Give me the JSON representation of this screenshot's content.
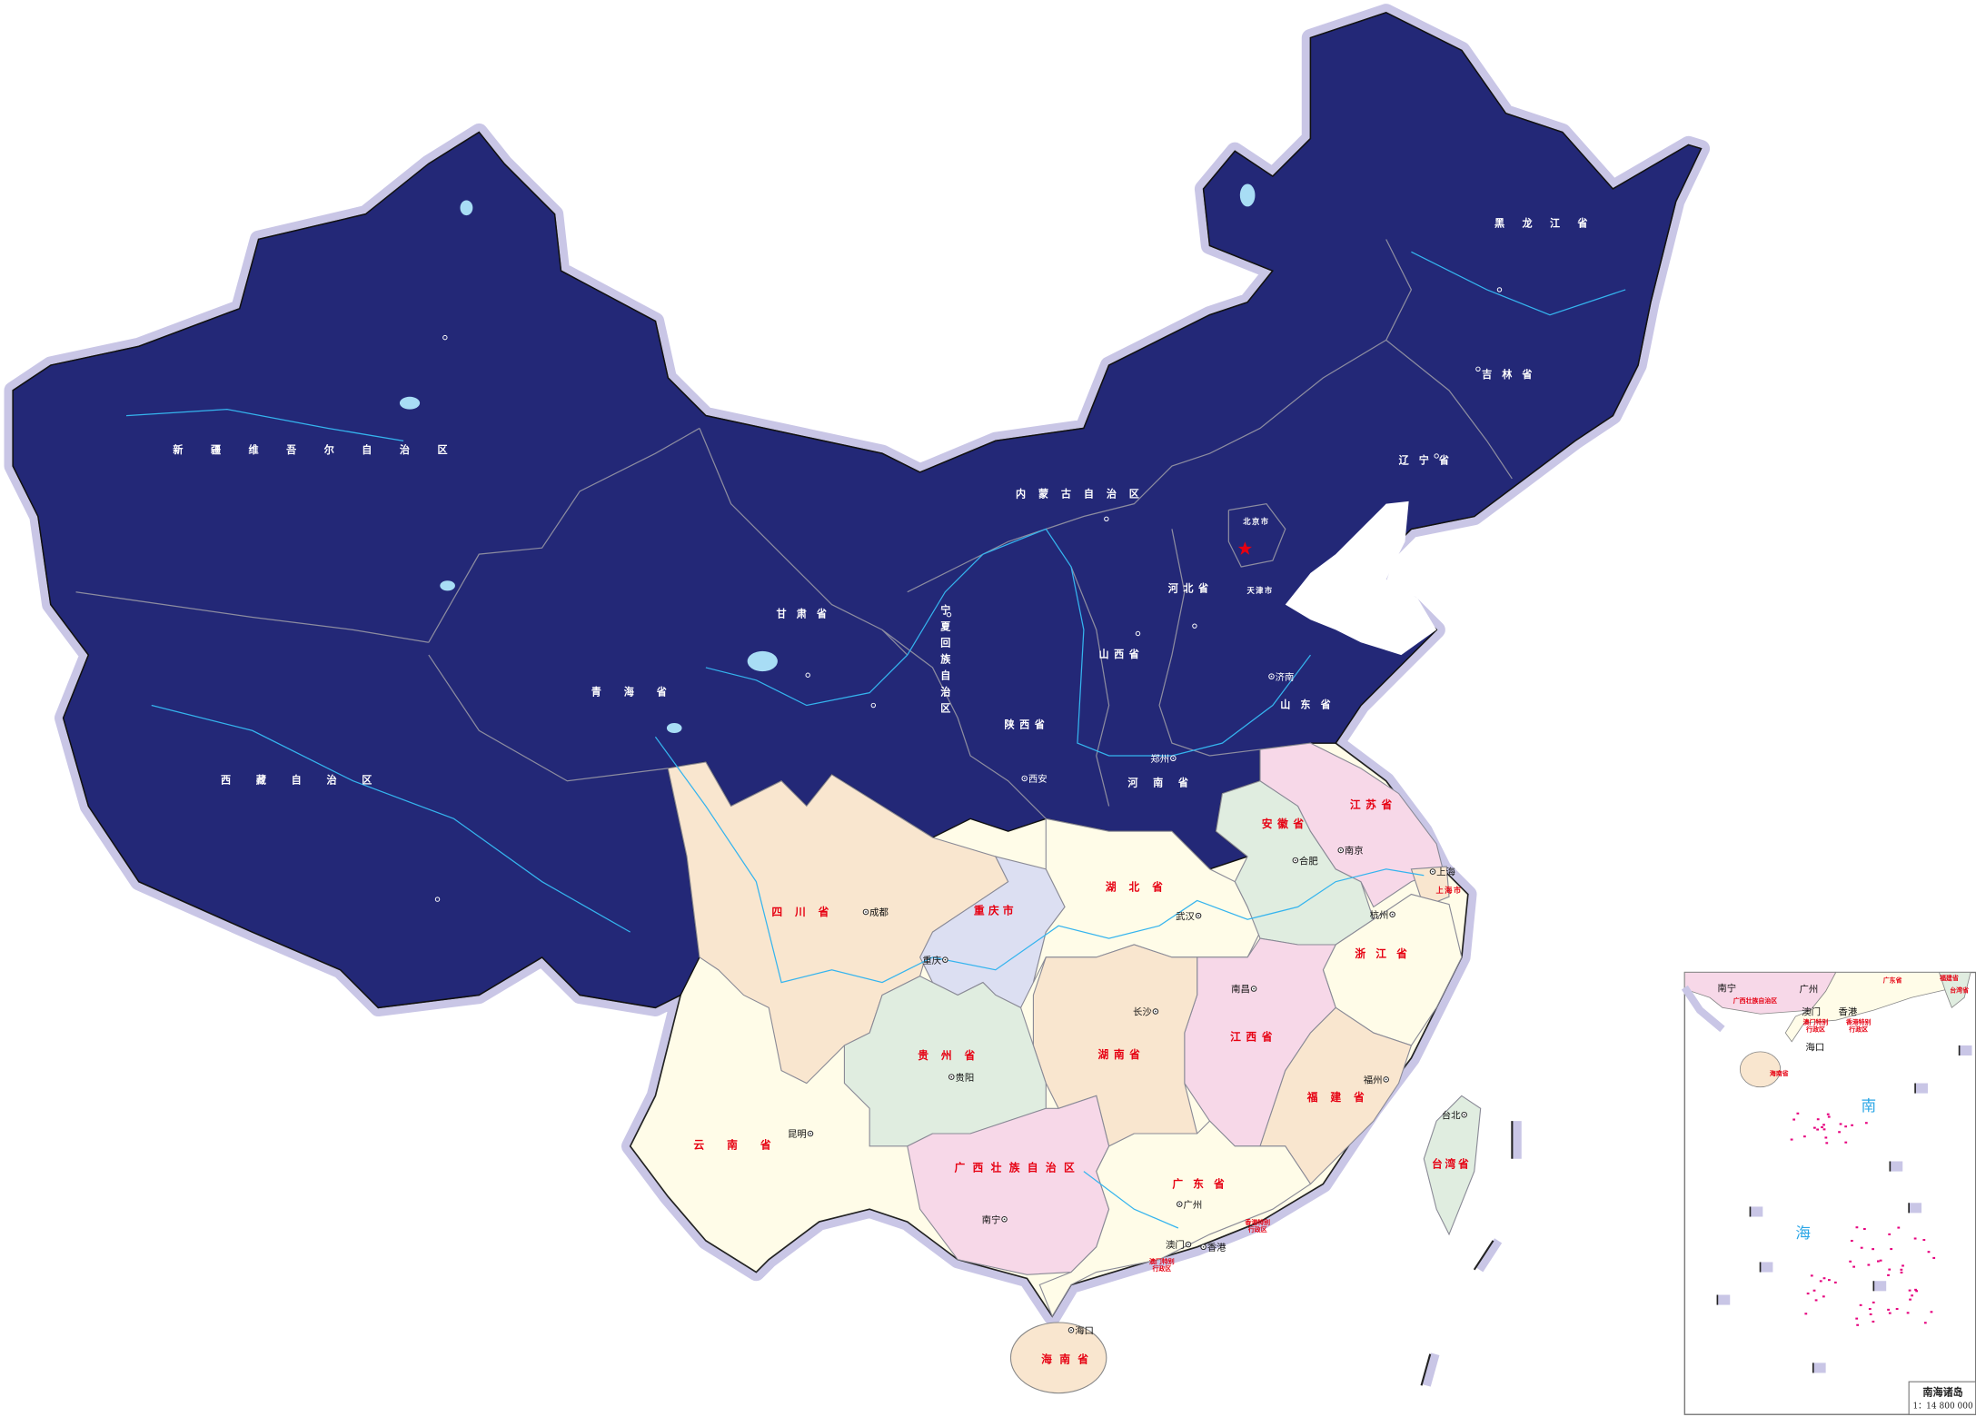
{
  "colors": {
    "north_region": "#232877",
    "halo": "#c9c6e6",
    "sichuan": "#f9e6cf",
    "chongqing": "#dcdff2",
    "cream": "#fffce8",
    "green": "#e0ede0",
    "pink": "#f7d8e8",
    "peach": "#f9e6cf",
    "river": "#35b4ee",
    "province_label_light": "#e60012",
    "island_dots": "#e6007e",
    "capital_star": "#e60012"
  },
  "provinces_dark": [
    {
      "name": "新疆维吾尔自治区"
    },
    {
      "name": "西藏自治区"
    },
    {
      "name": "青海省"
    },
    {
      "name": "甘肃省"
    },
    {
      "name": "内蒙古自治区"
    },
    {
      "name": "黑龙江省"
    },
    {
      "name": "吉林省"
    },
    {
      "name": "辽宁省"
    },
    {
      "name": "北京市"
    },
    {
      "name": "天津市"
    },
    {
      "name": "河北省"
    },
    {
      "name": "山西省"
    },
    {
      "name": "宁夏回族自治区"
    },
    {
      "name": "陕西省"
    },
    {
      "name": "山东省"
    },
    {
      "name": "河南省"
    }
  ],
  "provinces_light": [
    {
      "name": "四川省"
    },
    {
      "name": "重庆市"
    },
    {
      "name": "湖北省"
    },
    {
      "name": "安徽省"
    },
    {
      "name": "江苏省"
    },
    {
      "name": "上海市"
    },
    {
      "name": "浙江省"
    },
    {
      "name": "湖南省"
    },
    {
      "name": "江西省"
    },
    {
      "name": "福建省"
    },
    {
      "name": "贵州省"
    },
    {
      "name": "云南省"
    },
    {
      "name": "广西壮族自治区"
    },
    {
      "name": "广东省"
    },
    {
      "name": "海南省"
    },
    {
      "name": "台湾省"
    }
  ],
  "special_regions": [
    {
      "name": "香港特别行政区"
    },
    {
      "name": "澳门特别行政区"
    }
  ],
  "cities_light": [
    "成都",
    "重庆",
    "贵阳",
    "昆明",
    "南宁",
    "广州",
    "澳门",
    "香港",
    "海口",
    "长沙",
    "武汉",
    "南昌",
    "福州",
    "台北",
    "杭州",
    "南京",
    "合肥",
    "上海"
  ],
  "cities_dark": [
    "郑州",
    "济南",
    "西安"
  ],
  "inset": {
    "title": "南海诸岛",
    "scale": "1：14 800 000",
    "sea_label_chars": [
      "南",
      "海"
    ],
    "cities": [
      "南宁",
      "广州",
      "澳门",
      "香港",
      "海口"
    ],
    "provinces": [
      "广西壮族自治区",
      "广东省",
      "海南省",
      "福建省",
      "台湾省"
    ],
    "special_regions": [
      "澳门特别行政区",
      "香港特别行政区"
    ]
  }
}
